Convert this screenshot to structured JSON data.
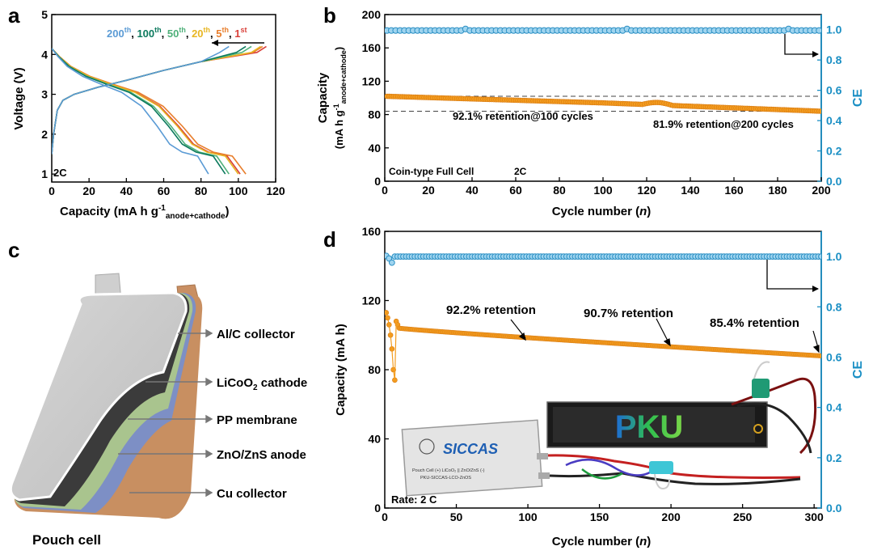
{
  "colors": {
    "orange": "#f39c1f",
    "orange_dark": "#d97a10",
    "blue": "#2a8fc4",
    "ce_axis": "#1a8fc4",
    "green_dark": "#0d7a5e",
    "green_light": "#4fb07a",
    "blue_light": "#5b9bd5",
    "yellow": "#e8b622",
    "orange_5th": "#e87e2c",
    "red_1st": "#d9403a"
  },
  "panel_labels": {
    "a": "a",
    "b": "b",
    "c": "c",
    "d": "d"
  },
  "chart_data": [
    {
      "id": "a",
      "type": "line",
      "title": "",
      "xlabel": "Capacity (mA h g",
      "xlabel_sup": "-1",
      "xlabel_sub": "anode+cathode",
      "xlabel_close": ")",
      "ylabel": "Voltage (V)",
      "xlim": [
        0,
        120
      ],
      "ylim": [
        0.8,
        5
      ],
      "xticks": [
        0,
        20,
        40,
        60,
        80,
        100,
        120
      ],
      "yticks": [
        1,
        2,
        3,
        4,
        5
      ],
      "annotation": "2C",
      "legend": [
        {
          "main": "200",
          "sup": "th",
          "color_key": "blue_light"
        },
        {
          "main": "100",
          "sup": "th",
          "color_key": "green_dark"
        },
        {
          "main": "50",
          "sup": "th",
          "color_key": "green_light"
        },
        {
          "main": "20",
          "sup": "th",
          "color_key": "yellow"
        },
        {
          "main": "5",
          "sup": "th",
          "color_key": "orange_5th"
        },
        {
          "main": "1",
          "sup": "st",
          "color_key": "red_1st"
        }
      ],
      "series": [
        {
          "name": "1st",
          "color_key": "red_1st",
          "charge_end": 115,
          "discharge_end": 101
        },
        {
          "name": "5th",
          "color_key": "orange_5th",
          "charge_end": 113,
          "discharge_end": 104
        },
        {
          "name": "20th",
          "color_key": "yellow",
          "charge_end": 112,
          "discharge_end": 100
        },
        {
          "name": "50th",
          "color_key": "green_light",
          "charge_end": 107,
          "discharge_end": 95
        },
        {
          "name": "100th",
          "color_key": "green_dark",
          "charge_end": 104,
          "discharge_end": 93
        },
        {
          "name": "200th",
          "color_key": "blue_light",
          "charge_end": 95,
          "discharge_end": 84
        }
      ]
    },
    {
      "id": "b",
      "type": "scatter",
      "xlabel": "Cycle number (",
      "xlabel_italic": "n",
      "xlabel_close": ")",
      "ylabel_main": "Capacity",
      "ylabel_units": "(mA h g",
      "ylabel_sup": "-1",
      "ylabel_sub": "anode+cathode",
      "ylabel_close": ")",
      "y2label": "CE",
      "xlim": [
        0,
        200
      ],
      "ylim": [
        0,
        200
      ],
      "y2lim": [
        0,
        1.1
      ],
      "xticks": [
        0,
        20,
        40,
        60,
        80,
        100,
        120,
        140,
        160,
        180,
        200
      ],
      "yticks": [
        0,
        40,
        80,
        120,
        160,
        200
      ],
      "y2ticks": [
        "0.0",
        "0.2",
        "0.4",
        "0.6",
        "0.8",
        "1.0"
      ],
      "capacity_start": 102,
      "capacity_100": 94,
      "capacity_end": 84,
      "ce": 0.995,
      "dashed_lines": [
        102,
        84
      ],
      "annotations": [
        "92.1% retention@100 cycles",
        "81.9% retention@200 cycles",
        "Coin-type Full Cell",
        "2C"
      ]
    },
    {
      "id": "d",
      "type": "scatter",
      "xlabel": "Cycle number (",
      "xlabel_italic": "n",
      "xlabel_close": ")",
      "ylabel": "Capacity (mA h)",
      "y2label": "CE",
      "xlim": [
        0,
        305
      ],
      "ylim": [
        0,
        160
      ],
      "y2lim": [
        0,
        1.1
      ],
      "xticks": [
        0,
        50,
        100,
        150,
        200,
        250,
        300
      ],
      "yticks": [
        0,
        40,
        80,
        120,
        160
      ],
      "y2ticks": [
        "0.0",
        "0.2",
        "0.4",
        "0.6",
        "0.8",
        "1.0"
      ],
      "capacity_start": 104,
      "capacity_end": 88,
      "ce": 1.0,
      "annotations": [
        "92.2% retention",
        "90.7% retention",
        "85.4% retention",
        "Rate: 2 C"
      ],
      "photo_display_text": "PKU",
      "photo_pouch_brand": "SICCAS",
      "photo_pouch_lines": [
        "Pouch Cell  (+) LiCoO₂ || ZnO/ZnS (-)",
        "PKU-SICCAS-LCO-ZnOS"
      ]
    }
  ],
  "pouch_cell": {
    "title": "Pouch cell",
    "labels": [
      {
        "text": "Al/C collector"
      },
      {
        "text": "LiCoO",
        "sub": "2",
        "rest": " cathode"
      },
      {
        "text": "PP membrane"
      },
      {
        "text": "ZnO/ZnS anode"
      },
      {
        "text": "Cu collector"
      }
    ]
  }
}
